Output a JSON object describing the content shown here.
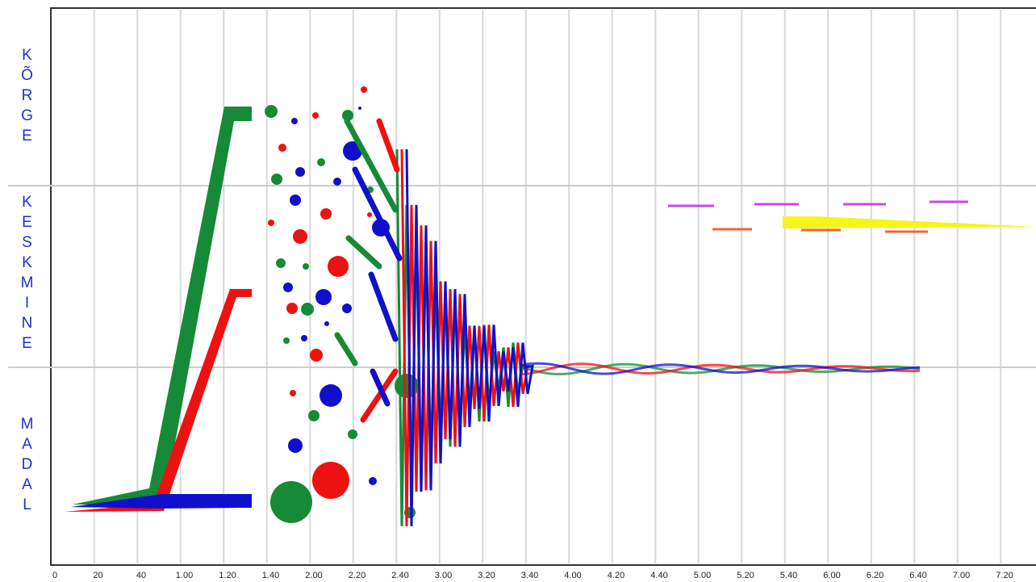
{
  "bands": [
    {
      "label": "KÕRGE"
    },
    {
      "label": "KESKMINE"
    },
    {
      "label": "MADAL"
    }
  ],
  "x_axis": {
    "ticks": [
      "0",
      "20",
      "40",
      "1.00",
      "1.20",
      "1.40",
      "2.00",
      "2.20",
      "2.40",
      "3.00",
      "3.20",
      "3.40",
      "4.00",
      "4.20",
      "4.40",
      "5.00",
      "5.20",
      "5.40",
      "6.00",
      "6.20",
      "6.40",
      "7.00",
      "7.20"
    ]
  }
}
